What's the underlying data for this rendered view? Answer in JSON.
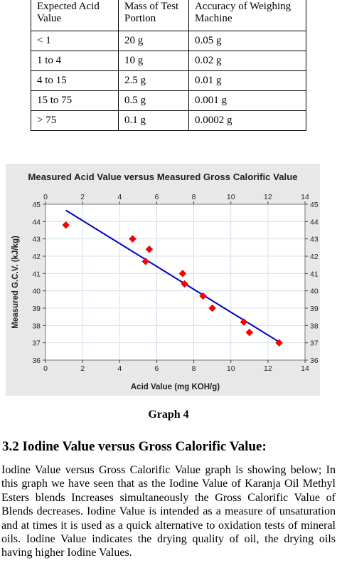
{
  "table": {
    "headers": [
      "Expected Acid Value",
      "Mass of Test Portion",
      "Accuracy of Weighing Machine"
    ],
    "rows": [
      [
        "< 1",
        "20 g",
        "0.05 g"
      ],
      [
        "1 to 4",
        "10 g",
        "0.02 g"
      ],
      [
        "4 to 15",
        "2.5 g",
        "0.01 g"
      ],
      [
        "15 to 75",
        "0.5 g",
        "0.001 g"
      ],
      [
        "> 75",
        "0.1 g",
        "0.0002 g"
      ]
    ]
  },
  "chart_data": {
    "type": "scatter",
    "title": "Measured Acid Value versus Measured Gross Calorific Value",
    "xlabel": "Acid Value (mg KOH/g)",
    "ylabel": "Measured G.C.V. (kJ/kg)",
    "xlim": [
      0,
      14
    ],
    "ylim": [
      36,
      45
    ],
    "xticks": [
      0,
      2,
      4,
      6,
      8,
      10,
      12,
      14
    ],
    "yticks": [
      36,
      37,
      38,
      39,
      40,
      41,
      42,
      43,
      44,
      45
    ],
    "grid": true,
    "mirror_axes": true,
    "series": [
      {
        "marker": "diamond",
        "color": "#ff0000",
        "points": [
          [
            1.1,
            43.8
          ],
          [
            4.7,
            43.0
          ],
          [
            5.4,
            41.7
          ],
          [
            5.6,
            42.4
          ],
          [
            7.4,
            41.0
          ],
          [
            7.5,
            40.4
          ],
          [
            8.5,
            39.7
          ],
          [
            9.0,
            39.0
          ],
          [
            10.7,
            38.2
          ],
          [
            11.0,
            37.6
          ],
          [
            12.6,
            37.0
          ]
        ]
      }
    ],
    "fit_line": {
      "color": "#0000cc",
      "from": [
        1.1,
        44.65
      ],
      "to": [
        12.6,
        37.05
      ]
    },
    "colors": {
      "background": "#e8e8e8",
      "plot_area": "#ffffff",
      "grid": "#cfd8e8"
    }
  },
  "caption": "Graph 4",
  "section_title": "3.2 Iodine Value versus Gross Calorific Value:",
  "paragraph": "Iodine Value versus Gross Calorific Value graph is showing below; In this graph we have seen that as the Iodine Value of Karanja Oil Methyl Esters blends Increases simultaneously the Gross Calorific Value of Blends decreases. Iodine Value is intended as a measure of unsaturation and at times it is used as a quick alternative to oxidation tests of mineral oils. Iodine Value indicates the drying quality of oil, the drying oils having higher Iodine Values."
}
